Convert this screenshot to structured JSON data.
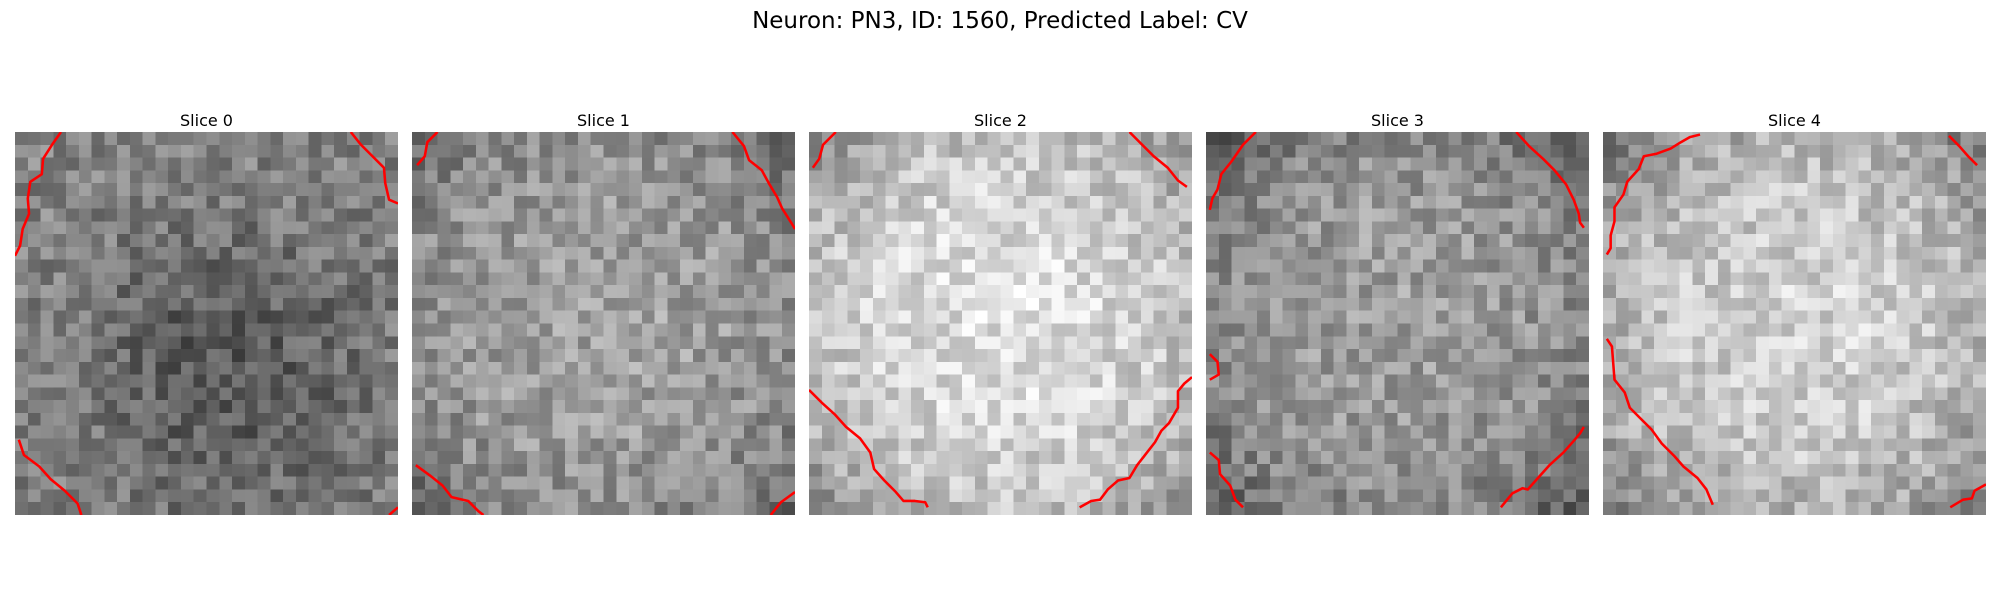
{
  "figure": {
    "title": "Neuron: PN3, ID: 1560, Predicted Label: CV",
    "grid_size": 30,
    "contour_color": "#ff0000",
    "colormap": "grayscale"
  },
  "slices": [
    {
      "title": "Slice 0",
      "brightness": "medium-dark, dark central blob",
      "base": 140,
      "center": [
        16,
        18
      ],
      "center_delta": -55,
      "edge_delta": -10,
      "seed": 11,
      "contours": [
        [
          [
            3.6,
            0
          ],
          [
            2.9,
            1
          ],
          [
            2.2,
            2.1
          ],
          [
            2.1,
            3.3
          ],
          [
            1.2,
            3.9
          ],
          [
            1.0,
            5.2
          ],
          [
            1.1,
            6.4
          ],
          [
            0.6,
            7.6
          ],
          [
            0.4,
            8.9
          ],
          [
            0,
            9.7
          ]
        ],
        [
          [
            26.3,
            0
          ],
          [
            27.1,
            1
          ],
          [
            28.0,
            1.9
          ],
          [
            28.9,
            2.8
          ],
          [
            29.0,
            4.0
          ],
          [
            29.3,
            5.3
          ],
          [
            30,
            5.6
          ]
        ],
        [
          [
            0.3,
            24.1
          ],
          [
            0.7,
            25.3
          ],
          [
            1.9,
            26.2
          ],
          [
            2.8,
            27.2
          ],
          [
            3.9,
            28.1
          ],
          [
            4.9,
            29.1
          ],
          [
            5.2,
            30
          ]
        ],
        [
          [
            29.3,
            30
          ],
          [
            30,
            29.4
          ]
        ]
      ]
    },
    {
      "title": "Slice 1",
      "brightness": "medium, darker corners",
      "base": 150,
      "center": [
        15,
        15
      ],
      "center_delta": 12,
      "edge_delta": -45,
      "seed": 23,
      "contours": [
        [
          [
            2.0,
            0
          ],
          [
            1.2,
            0.8
          ],
          [
            1.0,
            1.9
          ],
          [
            0.4,
            2.6
          ]
        ],
        [
          [
            25.1,
            0
          ],
          [
            26.0,
            1.1
          ],
          [
            26.4,
            2.2
          ],
          [
            27.4,
            3.0
          ],
          [
            28.0,
            4.1
          ],
          [
            28.6,
            5.1
          ],
          [
            29.0,
            6.0
          ],
          [
            29.7,
            7.1
          ],
          [
            30,
            7.6
          ]
        ],
        [
          [
            0.3,
            26.1
          ],
          [
            1.4,
            26.9
          ],
          [
            2.4,
            27.7
          ],
          [
            3.1,
            28.6
          ],
          [
            4.4,
            28.9
          ],
          [
            5.2,
            29.7
          ],
          [
            5.6,
            30
          ]
        ],
        [
          [
            28.1,
            30
          ],
          [
            28.9,
            29.0
          ],
          [
            30,
            28.2
          ]
        ]
      ]
    },
    {
      "title": "Slice 2",
      "brightness": "bright, dark lower-right corner",
      "base": 205,
      "center": [
        15,
        14
      ],
      "center_delta": 18,
      "edge_delta": -70,
      "seed": 37,
      "contours": [
        [
          [
            2.1,
            0
          ],
          [
            1.1,
            1.0
          ],
          [
            0.8,
            2.1
          ],
          [
            0.3,
            2.8
          ]
        ],
        [
          [
            25.1,
            0
          ],
          [
            26.0,
            0.9
          ],
          [
            27.0,
            1.9
          ],
          [
            28.1,
            2.8
          ],
          [
            28.9,
            3.8
          ],
          [
            29.6,
            4.3
          ]
        ],
        [
          [
            0,
            20.2
          ],
          [
            1.0,
            21.2
          ],
          [
            2.0,
            22.1
          ],
          [
            2.9,
            23.1
          ],
          [
            4.0,
            24.0
          ],
          [
            4.8,
            25.1
          ],
          [
            5.1,
            26.4
          ],
          [
            5.9,
            27.3
          ],
          [
            6.8,
            28.2
          ],
          [
            7.4,
            28.9
          ],
          [
            8.3,
            28.9
          ],
          [
            9.1,
            29.0
          ],
          [
            9.3,
            29.4
          ]
        ],
        [
          [
            21.2,
            29.4
          ],
          [
            22.1,
            28.9
          ],
          [
            22.8,
            28.8
          ],
          [
            23.4,
            28.0
          ],
          [
            24.2,
            27.3
          ],
          [
            25.1,
            27.1
          ],
          [
            25.7,
            26.1
          ],
          [
            26.4,
            25.2
          ],
          [
            27.1,
            24.3
          ],
          [
            27.6,
            23.4
          ],
          [
            28.2,
            22.8
          ],
          [
            28.9,
            21.6
          ],
          [
            28.9,
            20.3
          ],
          [
            29.4,
            19.7
          ],
          [
            30,
            19.2
          ]
        ]
      ]
    },
    {
      "title": "Slice 3",
      "brightness": "medium, dark lower corners",
      "base": 150,
      "center": [
        13,
        12
      ],
      "center_delta": 8,
      "edge_delta": -65,
      "seed": 53,
      "contours": [
        [
          [
            3.9,
            0
          ],
          [
            2.9,
            1.0
          ],
          [
            2.0,
            2.3
          ],
          [
            1.2,
            3.3
          ],
          [
            0.9,
            4.5
          ],
          [
            0.5,
            5.2
          ],
          [
            0.3,
            6.1
          ]
        ],
        [
          [
            24.3,
            0
          ],
          [
            25.3,
            1.1
          ],
          [
            26.4,
            2.1
          ],
          [
            27.3,
            3.0
          ],
          [
            28.2,
            4.1
          ],
          [
            28.8,
            5.3
          ],
          [
            29.2,
            6.4
          ],
          [
            29.3,
            7.1
          ],
          [
            29.6,
            7.5
          ]
        ],
        [
          [
            0.3,
            17.4
          ],
          [
            0.9,
            18.0
          ],
          [
            1.0,
            19.0
          ],
          [
            0.3,
            19.4
          ]
        ],
        [
          [
            0.3,
            25.1
          ],
          [
            1.0,
            25.7
          ],
          [
            1.1,
            26.8
          ],
          [
            1.9,
            27.7
          ],
          [
            2.3,
            28.8
          ],
          [
            2.9,
            29.4
          ]
        ],
        [
          [
            23.1,
            29.4
          ],
          [
            24.0,
            28.3
          ],
          [
            24.8,
            27.9
          ],
          [
            25.2,
            28.0
          ],
          [
            26.0,
            27.1
          ],
          [
            26.9,
            26.1
          ],
          [
            28.0,
            25.1
          ],
          [
            28.8,
            24.2
          ],
          [
            29.3,
            23.6
          ],
          [
            29.6,
            23.1
          ]
        ]
      ]
    },
    {
      "title": "Slice 4",
      "brightness": "bright, dark border ring",
      "base": 195,
      "center": [
        16,
        15
      ],
      "center_delta": 15,
      "edge_delta": -85,
      "seed": 71,
      "contours": [
        [
          [
            7.6,
            0.2
          ],
          [
            6.8,
            0.4
          ],
          [
            6.1,
            0.8
          ],
          [
            5.3,
            1.3
          ],
          [
            4.2,
            1.7
          ],
          [
            3.2,
            1.9
          ],
          [
            2.8,
            2.9
          ],
          [
            1.9,
            3.9
          ],
          [
            1.6,
            4.9
          ],
          [
            0.9,
            5.9
          ],
          [
            0.9,
            7.0
          ],
          [
            0.6,
            8.1
          ],
          [
            0.6,
            9.1
          ],
          [
            0.3,
            9.6
          ]
        ],
        [
          [
            27.1,
            0.3
          ],
          [
            27.9,
            1.1
          ],
          [
            28.6,
            1.9
          ],
          [
            29.3,
            2.6
          ]
        ],
        [
          [
            0.3,
            16.2
          ],
          [
            0.7,
            16.8
          ],
          [
            0.8,
            18.1
          ],
          [
            0.9,
            19.4
          ],
          [
            1.7,
            20.4
          ],
          [
            2.1,
            21.6
          ],
          [
            2.9,
            22.4
          ],
          [
            3.8,
            23.3
          ],
          [
            4.6,
            24.4
          ],
          [
            5.6,
            25.4
          ],
          [
            6.3,
            26.2
          ],
          [
            7.4,
            27.1
          ],
          [
            8.1,
            28.0
          ],
          [
            8.6,
            29.2
          ]
        ],
        [
          [
            27.2,
            29.4
          ],
          [
            28.2,
            28.8
          ],
          [
            28.9,
            28.7
          ],
          [
            29.1,
            28.1
          ],
          [
            30,
            27.6
          ]
        ]
      ]
    }
  ]
}
